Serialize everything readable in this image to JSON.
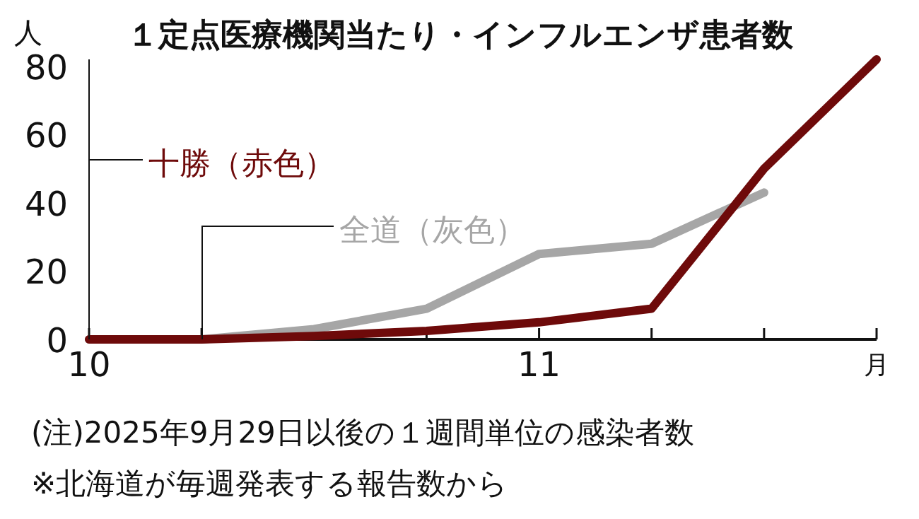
{
  "chart_data": {
    "type": "line",
    "title": "１定点医療機関当たり・インフルエンザ患者数",
    "ylabel": "人",
    "xlabel": "月",
    "categories": [
      "10",
      null,
      null,
      null,
      "11",
      null,
      null,
      null
    ],
    "series": [
      {
        "name": "全道（灰色）",
        "color": "#a6a6a6",
        "values": [
          0,
          0,
          3,
          9,
          25,
          28,
          43,
          null
        ]
      },
      {
        "name": "十勝（赤色）",
        "color": "#6e0a0a",
        "values": [
          0,
          0,
          1,
          2.5,
          5,
          9,
          50,
          82
        ]
      }
    ],
    "ylim": [
      0,
      82
    ],
    "yticks": [
      0,
      20,
      40,
      60,
      80
    ],
    "grid": false,
    "legend": false,
    "marker": "none",
    "line_style": "solid",
    "annotations": [
      "(注)2025年9月29日以後の１週間単位の感染者数",
      "※北海道が毎週発表する報告数から"
    ]
  }
}
